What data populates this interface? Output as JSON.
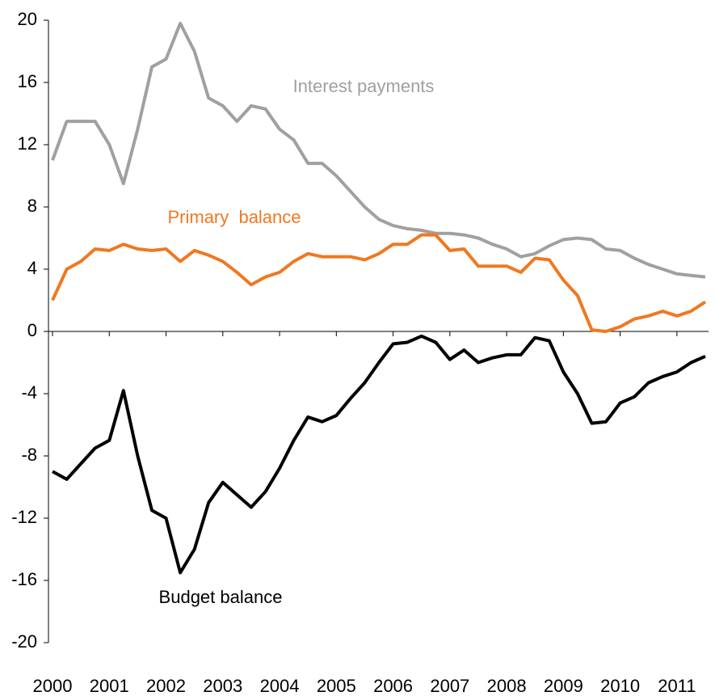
{
  "chart_data": {
    "type": "line",
    "categories": [
      "2000",
      null,
      null,
      null,
      "2001",
      null,
      null,
      null,
      "2002",
      null,
      null,
      null,
      "2003",
      null,
      null,
      null,
      "2004",
      null,
      null,
      null,
      "2005",
      null,
      null,
      null,
      "2006",
      null,
      null,
      null,
      "2007",
      null,
      null,
      null,
      "2008",
      null,
      null,
      null,
      "2009",
      null,
      null,
      null,
      "2010",
      null,
      null,
      null,
      "2011",
      null,
      null
    ],
    "series": [
      {
        "name": "Interest payments",
        "color": "#a0a0a0",
        "values": [
          11,
          13.5,
          13.5,
          13.5,
          12,
          9.5,
          13,
          17,
          17.5,
          19.8,
          18,
          15,
          14.5,
          13.5,
          14.5,
          14.3,
          13,
          12.3,
          10.8,
          10.8,
          10,
          9,
          8,
          7.2,
          6.8,
          6.6,
          6.5,
          6.3,
          6.3,
          6.2,
          6.0,
          5.6,
          5.3,
          4.8,
          5.0,
          5.5,
          5.9,
          6.0,
          5.9,
          5.3,
          5.2,
          4.7,
          4.3,
          4.0,
          3.7,
          3.6,
          3.5
        ]
      },
      {
        "name": "Primary  balance",
        "color": "#f07820",
        "values": [
          2,
          4.0,
          4.5,
          5.3,
          5.2,
          5.6,
          5.3,
          5.2,
          5.3,
          4.5,
          5.2,
          4.9,
          4.5,
          3.8,
          3.0,
          3.5,
          3.8,
          4.5,
          5.0,
          4.8,
          4.8,
          4.8,
          4.6,
          5.0,
          5.6,
          5.6,
          6.2,
          6.2,
          5.2,
          5.3,
          4.2,
          4.2,
          4.2,
          3.8,
          4.7,
          4.6,
          3.3,
          2.3,
          0.1,
          0.0,
          0.3,
          0.8,
          1.0,
          1.3,
          1.0,
          1.3,
          1.9
        ]
      },
      {
        "name": "Budget balance",
        "color": "#000000",
        "values": [
          -9,
          -9.5,
          -8.5,
          -7.5,
          -7,
          -3.8,
          -8,
          -11.5,
          -12,
          -15.5,
          -14,
          -11,
          -9.7,
          -10.5,
          -11.3,
          -10.3,
          -8.8,
          -7,
          -5.5,
          -5.8,
          -5.4,
          -4.3,
          -3.3,
          -2,
          -0.8,
          -0.7,
          -0.3,
          -0.7,
          -1.8,
          -1.2,
          -2,
          -1.7,
          -1.5,
          -1.5,
          -0.4,
          -0.6,
          -2.6,
          -4,
          -5.9,
          -5.8,
          -4.6,
          -4.2,
          -3.3,
          -2.9,
          -2.6,
          -2.0,
          -1.6
        ]
      }
    ],
    "ylim": [
      -20,
      20
    ],
    "yticks": [
      -20,
      -16,
      -12,
      -8,
      -4,
      0,
      4,
      8,
      12,
      16,
      20
    ]
  }
}
